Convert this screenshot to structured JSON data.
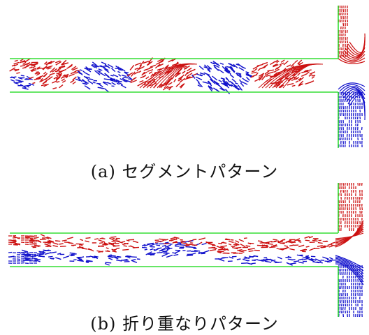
{
  "figure": {
    "colors": {
      "wall": "#33dd33",
      "fluid_red": "#cc1111",
      "fluid_blue": "#1111cc"
    },
    "panels": [
      {
        "id": "a",
        "caption": "(a) セグメントパターン"
      },
      {
        "id": "b",
        "caption": "(b) 折り重なりパターン"
      }
    ]
  }
}
